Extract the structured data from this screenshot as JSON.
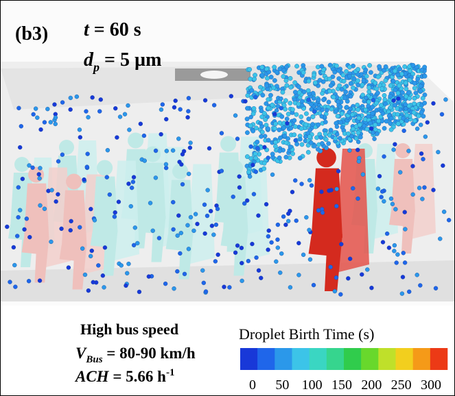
{
  "panel_label": "(b3)",
  "time": {
    "symbol": "t",
    "rest": " = 60 s"
  },
  "diameter": {
    "symbol": "d",
    "subscript": "p",
    "rest": " = 5 µm"
  },
  "conditions": {
    "title": "High bus speed",
    "speed": {
      "symbol": "V",
      "subscript": "Bus",
      "rest": " = 80-90 km/h"
    },
    "ach": {
      "symbol": "ACH",
      "rest": " = 5.66 h",
      "superscript": "-1"
    }
  },
  "colorbar": {
    "title": "Droplet Birth Time (s)",
    "range": [
      0,
      300
    ],
    "ticks": [
      0,
      50,
      100,
      150,
      200,
      250,
      300
    ],
    "colors": [
      "#1838d8",
      "#1f66ea",
      "#2b98ea",
      "#3cc4e8",
      "#3ad6c2",
      "#36d58e",
      "#30cc4c",
      "#68d82c",
      "#bfe02a",
      "#f2cf1e",
      "#f59a18",
      "#ec3a16"
    ]
  }
}
